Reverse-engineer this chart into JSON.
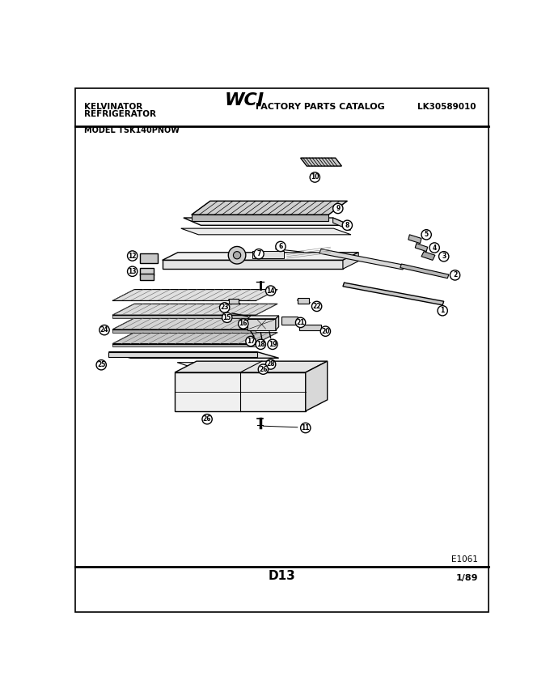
{
  "title_left_line1": "KELVINATOR",
  "title_left_line2": "REFRIGERATOR",
  "title_center_wci": "WCI",
  "title_center_text": "FACTORY PARTS CATALOG",
  "title_right": "LK30589010",
  "model": "MODEL TSK140PNOW",
  "page": "D13",
  "date": "1/89",
  "diagram_id": "E1061",
  "bg_color": "#ffffff",
  "border_color": "#000000",
  "text_color": "#000000",
  "fig_width": 6.8,
  "fig_height": 8.56,
  "dpi": 100
}
